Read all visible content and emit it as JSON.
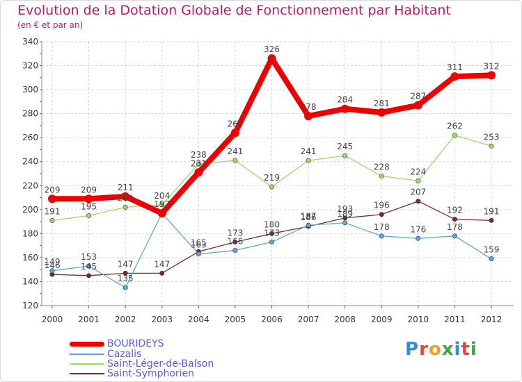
{
  "title": "Evolution de la Dotation Globale de Fonctionnement par Habitant",
  "subtitle": "(en € et par an)",
  "logo": {
    "text": "Proxiti",
    "letter_colors": [
      "#2f8fd8",
      "#e6453a",
      "#f0a020",
      "#3fa84a",
      "#2f8fd8",
      "#e6453a",
      "#3fa84a"
    ]
  },
  "chart_data": {
    "type": "line",
    "x": [
      "2000",
      "2001",
      "2002",
      "2003",
      "2004",
      "2005",
      "2006",
      "2007",
      "2008",
      "2009",
      "2010",
      "2011",
      "2012"
    ],
    "ylim": [
      120,
      340
    ],
    "yticks": [
      "120",
      "140",
      "160",
      "180",
      "200",
      "220",
      "240",
      "260",
      "280",
      "300",
      "320",
      "340"
    ],
    "grid": true,
    "legend_placement": "bottom-left",
    "series": [
      {
        "name": "BOURIDEYS",
        "color": "#ee0000",
        "values": [
          209,
          209,
          211,
          197,
          231,
          264,
          326,
          278,
          284,
          281,
          287,
          311,
          312
        ],
        "labels": [
          "209",
          "209",
          "211",
          "",
          "231",
          "264",
          "326",
          "278",
          "284",
          "281",
          "287",
          "311",
          "312"
        ]
      },
      {
        "name": "Cazalis",
        "color": "#5ea6d8",
        "values": [
          149,
          153,
          135,
          197,
          163,
          166,
          173,
          187,
          189,
          178,
          176,
          178,
          159
        ],
        "labels": [
          "149",
          "153",
          "135",
          "197",
          "163",
          "166",
          "173",
          "187",
          "189",
          "178",
          "176",
          "178",
          "159"
        ]
      },
      {
        "name": "Saint-Léger-de-Balson",
        "color": "#99dd66",
        "values": [
          191,
          195,
          202,
          204,
          238,
          241,
          219,
          241,
          245,
          228,
          224,
          262,
          253
        ],
        "labels": [
          "191",
          "195",
          "202",
          "204",
          "238",
          "241",
          "219",
          "241",
          "245",
          "228",
          "224",
          "262",
          "253"
        ]
      },
      {
        "name": "Saint-Symphorien",
        "color": "#7a2a2a",
        "values": [
          146,
          145,
          147,
          147,
          165,
          173,
          180,
          186,
          193,
          196,
          207,
          192,
          191
        ],
        "labels": [
          "146",
          "145",
          "147",
          "147",
          "165",
          "173",
          "180",
          "186",
          "193",
          "196",
          "207",
          "192",
          "191"
        ]
      }
    ]
  }
}
